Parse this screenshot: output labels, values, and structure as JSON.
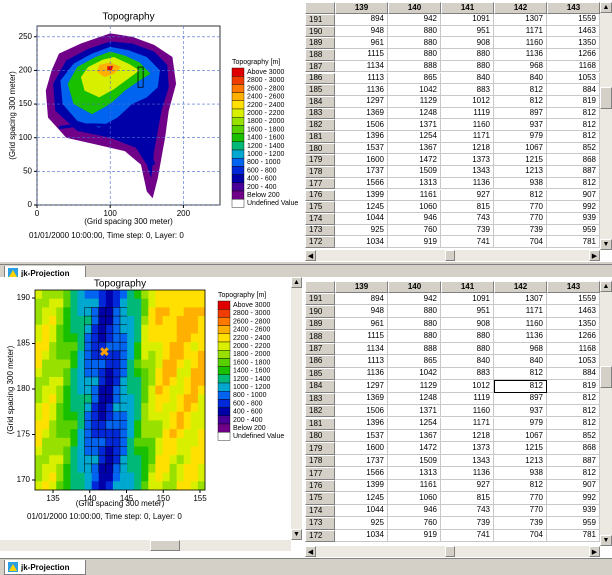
{
  "panels": [
    {
      "chart": {
        "title": "Topography",
        "x_label": "(Grid spacing 300 meter)",
        "y_label": "(Grid spacing 300 meter)",
        "xlim": [
          0,
          250
        ],
        "ylim": [
          0,
          266
        ],
        "xticks": [
          0,
          100,
          200
        ],
        "yticks": [
          0,
          50,
          100,
          150,
          200,
          250
        ],
        "footer": "01/01/2000 10:00:00, Time step: 0, Layer: 0",
        "legend": {
          "title": "Topography [m]",
          "items": [
            {
              "label": "Above 3000",
              "color": "#e00000"
            },
            {
              "label": "2800 - 3000",
              "color": "#f03c00"
            },
            {
              "label": "2600 - 2800",
              "color": "#ff7800"
            },
            {
              "label": "2400 - 2600",
              "color": "#ffb000"
            },
            {
              "label": "2200 - 2400",
              "color": "#ffe000"
            },
            {
              "label": "2000 - 2200",
              "color": "#d8f000"
            },
            {
              "label": "1800 - 2000",
              "color": "#98e000"
            },
            {
              "label": "1600 - 1800",
              "color": "#58d000"
            },
            {
              "label": "1400 - 1600",
              "color": "#18c000"
            },
            {
              "label": "1200 - 1400",
              "color": "#00b878"
            },
            {
              "label": "1000 - 1200",
              "color": "#00a8d0"
            },
            {
              "label": "800 - 1000",
              "color": "#0064f0"
            },
            {
              "label": "600 - 800",
              "color": "#0028d8"
            },
            {
              "label": "400 - 600",
              "color": "#0000a8"
            },
            {
              "label": "200 - 400",
              "color": "#480098"
            },
            {
              "label": "Below 200",
              "color": "#700088"
            },
            {
              "label": "Undefined Value",
              "color": "#ffffff"
            }
          ]
        }
      },
      "table": {
        "columns": [
          139,
          140,
          141,
          142,
          143
        ],
        "rows": [
          [
            191,
            894,
            942,
            1091,
            1307,
            1559
          ],
          [
            190,
            948,
            880,
            951,
            1171,
            1463
          ],
          [
            189,
            961,
            880,
            908,
            1160,
            1350
          ],
          [
            188,
            1115,
            880,
            880,
            1136,
            1266
          ],
          [
            187,
            1134,
            888,
            880,
            968,
            1168
          ],
          [
            186,
            1113,
            865,
            840,
            840,
            1053
          ],
          [
            185,
            1136,
            1042,
            883,
            812,
            884
          ],
          [
            184,
            1297,
            1129,
            1012,
            812,
            819
          ],
          [
            183,
            1369,
            1248,
            1119,
            897,
            812
          ],
          [
            182,
            1506,
            1371,
            1160,
            937,
            812
          ],
          [
            181,
            1396,
            1254,
            1171,
            979,
            812
          ],
          [
            180,
            1537,
            1367,
            1218,
            1067,
            852
          ],
          [
            179,
            1600,
            1472,
            1373,
            1215,
            868
          ],
          [
            178,
            1737,
            1509,
            1343,
            1213,
            887
          ],
          [
            177,
            1566,
            1313,
            1136,
            938,
            812
          ],
          [
            176,
            1399,
            1161,
            927,
            812,
            907
          ],
          [
            175,
            1245,
            1060,
            815,
            770,
            992
          ],
          [
            174,
            1044,
            946,
            743,
            770,
            939
          ],
          [
            173,
            925,
            760,
            739,
            739,
            959
          ],
          [
            172,
            1034,
            919,
            741,
            704,
            781
          ]
        ]
      },
      "tab": "jk-Projection"
    },
    {
      "chart": {
        "title": "Topography",
        "x_label": "(Grid spacing 300 meter)",
        "y_label": "(Grid spacing 300 meter)",
        "xlim": [
          132.55,
          155.68
        ],
        "ylim": [
          168.9,
          190.88
        ],
        "xticks": [
          135,
          140,
          145,
          150,
          155
        ],
        "yticks": [
          170,
          175,
          180,
          185,
          190
        ],
        "footer": "01/01/2000 10:00:00, Time step: 0, Layer: 0",
        "legend": {
          "title": "Topography [m]",
          "items": [
            {
              "label": "Above 3000",
              "color": "#e00000"
            },
            {
              "label": "2800 - 3000",
              "color": "#f03c00"
            },
            {
              "label": "2600 - 2800",
              "color": "#ff7800"
            },
            {
              "label": "2400 - 2600",
              "color": "#ffb000"
            },
            {
              "label": "2200 - 2400",
              "color": "#ffe000"
            },
            {
              "label": "2000 - 2200",
              "color": "#d8f000"
            },
            {
              "label": "1800 - 2000",
              "color": "#98e000"
            },
            {
              "label": "1600 - 1800",
              "color": "#58d000"
            },
            {
              "label": "1400 - 1600",
              "color": "#18c000"
            },
            {
              "label": "1200 - 1400",
              "color": "#00b878"
            },
            {
              "label": "1000 - 1200",
              "color": "#00a8d0"
            },
            {
              "label": "800 - 1000",
              "color": "#0064f0"
            },
            {
              "label": "600 - 800",
              "color": "#0028d8"
            },
            {
              "label": "400 - 600",
              "color": "#0000a8"
            },
            {
              "label": "200 - 400",
              "color": "#480098"
            },
            {
              "label": "Below 200",
              "color": "#700088"
            },
            {
              "label": "Undefined Value",
              "color": "#ffffff"
            }
          ]
        }
      },
      "table": {
        "columns": [
          139,
          140,
          141,
          142,
          143
        ],
        "rows": [
          [
            191,
            894,
            942,
            1091,
            1307,
            1559
          ],
          [
            190,
            948,
            880,
            951,
            1171,
            1463
          ],
          [
            189,
            961,
            880,
            908,
            1160,
            1350
          ],
          [
            188,
            1115,
            880,
            880,
            1136,
            1266
          ],
          [
            187,
            1134,
            888,
            880,
            968,
            1168
          ],
          [
            186,
            1113,
            865,
            840,
            840,
            1053
          ],
          [
            185,
            1136,
            1042,
            883,
            812,
            884
          ],
          [
            184,
            1297,
            1129,
            1012,
            812,
            819
          ],
          [
            183,
            1369,
            1248,
            1119,
            897,
            812
          ],
          [
            182,
            1506,
            1371,
            1160,
            937,
            812
          ],
          [
            181,
            1396,
            1254,
            1171,
            979,
            812
          ],
          [
            180,
            1537,
            1367,
            1218,
            1067,
            852
          ],
          [
            179,
            1600,
            1472,
            1373,
            1215,
            868
          ],
          [
            178,
            1737,
            1509,
            1343,
            1213,
            887
          ],
          [
            177,
            1566,
            1313,
            1136,
            938,
            812
          ],
          [
            176,
            1399,
            1161,
            927,
            812,
            907
          ],
          [
            175,
            1245,
            1060,
            815,
            770,
            992
          ],
          [
            174,
            1044,
            946,
            743,
            770,
            939
          ],
          [
            173,
            925,
            760,
            739,
            739,
            959
          ],
          [
            172,
            1034,
            919,
            741,
            704,
            781
          ]
        ]
      },
      "tab": "jk-Projection"
    }
  ]
}
